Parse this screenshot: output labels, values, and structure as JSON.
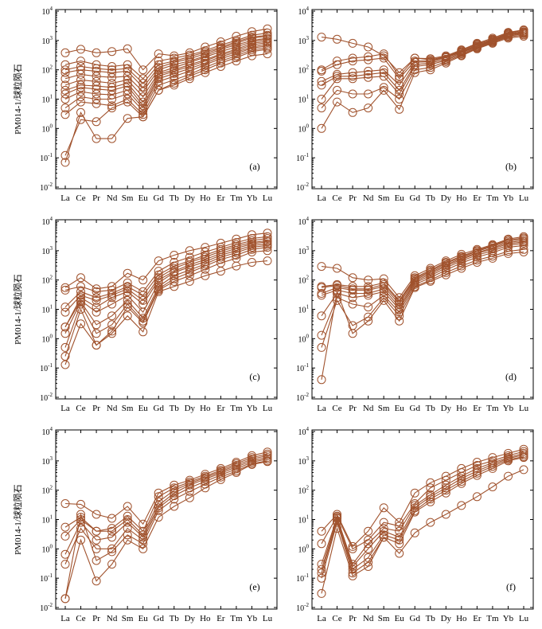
{
  "figure": {
    "series_color": "#a0522d"
  },
  "chart_data": [
    {
      "id": "a",
      "type": "line",
      "label": "(a)",
      "ylabel": "PM014-1/球粒陨石",
      "yscale": "log",
      "ylim": [
        0.01,
        10000
      ],
      "yticks": [
        "10-2",
        "10-1",
        "100",
        "101",
        "102",
        "103",
        "104"
      ],
      "categories": [
        "La",
        "Ce",
        "Pr",
        "Nd",
        "Sm",
        "Eu",
        "Gd",
        "Tb",
        "Dy",
        "Ho",
        "Er",
        "Tm",
        "Yb",
        "Lu"
      ],
      "series": [
        {
          "values": [
            380,
            500,
            380,
            420,
            520,
            100,
            350,
            300,
            380,
            600,
            900,
            1400,
            2000,
            2500
          ]
        },
        {
          "values": [
            150,
            200,
            150,
            130,
            150,
            50,
            200,
            250,
            320,
            450,
            700,
            1000,
            1500,
            1800
          ]
        },
        {
          "values": [
            100,
            130,
            110,
            100,
            110,
            35,
            150,
            200,
            280,
            400,
            600,
            900,
            1300,
            1500
          ]
        },
        {
          "values": [
            80,
            100,
            90,
            80,
            90,
            25,
            120,
            180,
            240,
            350,
            550,
            800,
            1200,
            1400
          ]
        },
        {
          "values": [
            50,
            70,
            60,
            55,
            60,
            18,
            100,
            150,
            200,
            300,
            500,
            700,
            1000,
            1200
          ]
        },
        {
          "values": [
            30,
            45,
            40,
            35,
            45,
            12,
            80,
            120,
            180,
            270,
            420,
            600,
            900,
            1100
          ]
        },
        {
          "values": [
            20,
            30,
            28,
            25,
            35,
            8,
            70,
            100,
            150,
            220,
            350,
            500,
            800,
            950
          ]
        },
        {
          "values": [
            15,
            25,
            22,
            20,
            28,
            6,
            60,
            90,
            130,
            200,
            320,
            450,
            700,
            850
          ]
        },
        {
          "values": [
            10,
            18,
            15,
            14,
            20,
            5,
            50,
            75,
            110,
            170,
            280,
            400,
            600,
            750
          ]
        },
        {
          "values": [
            5,
            12,
            10,
            10,
            15,
            4,
            40,
            60,
            90,
            150,
            240,
            350,
            550,
            650
          ]
        },
        {
          "values": [
            3,
            8,
            7,
            6,
            10,
            3,
            30,
            45,
            70,
            120,
            200,
            300,
            480,
            560
          ]
        },
        {
          "values": [
            0.12,
            2.0,
            1.7,
            5,
            8,
            2.5,
            20,
            35,
            60,
            100,
            170,
            260,
            420,
            500
          ]
        },
        {
          "values": [
            0.07,
            3.5,
            0.45,
            0.45,
            2.2,
            2.5,
            20,
            30,
            50,
            80,
            130,
            200,
            300,
            350
          ]
        }
      ]
    },
    {
      "id": "b",
      "type": "line",
      "label": "(b)",
      "yscale": "log",
      "ylim": [
        0.01,
        10000
      ],
      "yticks": [
        "10-2",
        "10-1",
        "100",
        "101",
        "102",
        "103",
        "104"
      ],
      "categories": [
        "La",
        "Ce",
        "Pr",
        "Nd",
        "Sm",
        "Eu",
        "Gd",
        "Tb",
        "Dy",
        "Ho",
        "Er",
        "Tm",
        "Yb",
        "Lu"
      ],
      "series": [
        {
          "values": [
            1300,
            1100,
            800,
            600,
            300,
            80,
            250,
            220,
            280,
            450,
            750,
            1100,
            1800,
            2200
          ]
        },
        {
          "values": [
            100,
            200,
            250,
            280,
            350,
            60,
            250,
            240,
            300,
            480,
            800,
            1200,
            1900,
            2300
          ]
        },
        {
          "values": [
            90,
            150,
            200,
            220,
            250,
            50,
            200,
            200,
            270,
            420,
            700,
            1050,
            1700,
            2000
          ]
        },
        {
          "values": [
            40,
            70,
            80,
            90,
            100,
            30,
            180,
            190,
            260,
            400,
            650,
            1000,
            1600,
            1900
          ]
        },
        {
          "values": [
            30,
            60,
            60,
            70,
            80,
            20,
            150,
            170,
            230,
            380,
            620,
            950,
            1500,
            1800
          ]
        },
        {
          "values": [
            10,
            50,
            50,
            55,
            60,
            15,
            130,
            150,
            210,
            350,
            580,
            900,
            1400,
            1700
          ]
        },
        {
          "values": [
            5,
            20,
            15,
            15,
            25,
            10,
            100,
            120,
            190,
            320,
            550,
            850,
            1300,
            1550
          ]
        },
        {
          "values": [
            1,
            8,
            3.5,
            5,
            20,
            4.5,
            80,
            100,
            170,
            300,
            520,
            800,
            1200,
            1400
          ]
        }
      ]
    },
    {
      "id": "c",
      "type": "line",
      "label": "(c)",
      "ylabel": "PM014-1/球粒陨石",
      "yscale": "log",
      "ylim": [
        0.01,
        10000
      ],
      "yticks": [
        "10-2",
        "10-1",
        "100",
        "101",
        "102",
        "103",
        "104"
      ],
      "categories": [
        "La",
        "Ce",
        "Pr",
        "Nd",
        "Sm",
        "Eu",
        "Gd",
        "Tb",
        "Dy",
        "Ho",
        "Er",
        "Tm",
        "Yb",
        "Lu"
      ],
      "series": [
        {
          "values": [
            55,
            120,
            50,
            60,
            170,
            100,
            450,
            700,
            1000,
            1300,
            1800,
            2500,
            3500,
            4000
          ]
        },
        {
          "values": [
            45,
            60,
            40,
            45,
            80,
            40,
            200,
            400,
            600,
            900,
            1300,
            1900,
            2600,
            3000
          ]
        },
        {
          "values": [
            12,
            40,
            25,
            35,
            60,
            30,
            150,
            300,
            450,
            700,
            1100,
            1600,
            2200,
            2600
          ]
        },
        {
          "values": [
            8,
            30,
            20,
            30,
            50,
            20,
            120,
            250,
            400,
            600,
            950,
            1400,
            1900,
            2200
          ]
        },
        {
          "values": [
            2.5,
            25,
            12,
            25,
            40,
            15,
            100,
            200,
            330,
            500,
            800,
            1200,
            1700,
            2000
          ]
        },
        {
          "values": [
            2.5,
            20,
            8,
            15,
            30,
            8,
            80,
            180,
            280,
            420,
            700,
            1000,
            1500,
            1700
          ]
        },
        {
          "values": [
            1.5,
            18,
            3,
            6,
            20,
            5,
            60,
            140,
            220,
            350,
            600,
            850,
            1300,
            1500
          ]
        },
        {
          "values": [
            0.5,
            15,
            1.5,
            3,
            15,
            4,
            50,
            110,
            180,
            300,
            500,
            700,
            1100,
            1300
          ]
        },
        {
          "values": [
            0.25,
            10,
            0.6,
            1.8,
            12,
            3.5,
            45,
            90,
            140,
            230,
            380,
            550,
            900,
            1000
          ]
        },
        {
          "values": [
            0.13,
            3.2,
            0.6,
            1.5,
            6,
            1.7,
            40,
            60,
            90,
            140,
            200,
            300,
            400,
            450
          ]
        }
      ]
    },
    {
      "id": "d",
      "type": "line",
      "label": "(d)",
      "yscale": "log",
      "ylim": [
        0.01,
        10000
      ],
      "yticks": [
        "10-2",
        "10-1",
        "100",
        "101",
        "102",
        "103",
        "104"
      ],
      "categories": [
        "La",
        "Ce",
        "Pr",
        "Nd",
        "Sm",
        "Eu",
        "Gd",
        "Tb",
        "Dy",
        "Ho",
        "Er",
        "Tm",
        "Yb",
        "Lu"
      ],
      "series": [
        {
          "values": [
            290,
            250,
            120,
            100,
            110,
            25,
            140,
            250,
            450,
            750,
            1100,
            1600,
            2500,
            3000
          ]
        },
        {
          "values": [
            60,
            70,
            60,
            60,
            80,
            20,
            120,
            220,
            400,
            650,
            1000,
            1500,
            2300,
            2700
          ]
        },
        {
          "values": [
            55,
            65,
            50,
            50,
            70,
            18,
            110,
            200,
            370,
            600,
            950,
            1400,
            2100,
            2500
          ]
        },
        {
          "values": [
            35,
            55,
            45,
            45,
            60,
            15,
            100,
            180,
            330,
            550,
            850,
            1250,
            1900,
            2200
          ]
        },
        {
          "values": [
            30,
            45,
            35,
            35,
            50,
            12,
            90,
            160,
            300,
            500,
            800,
            1150,
            1700,
            2000
          ]
        },
        {
          "values": [
            6,
            35,
            25,
            30,
            40,
            10,
            80,
            140,
            260,
            450,
            700,
            1000,
            1500,
            1800
          ]
        },
        {
          "values": [
            1.3,
            25,
            15,
            12,
            30,
            8,
            70,
            120,
            220,
            380,
            600,
            850,
            1300,
            1500
          ]
        },
        {
          "values": [
            0.5,
            20,
            2.8,
            5.5,
            25,
            6,
            60,
            100,
            180,
            300,
            480,
            650,
            950,
            1100
          ]
        },
        {
          "values": [
            0.04,
            40,
            1.5,
            4,
            20,
            4,
            55,
            90,
            150,
            250,
            400,
            550,
            800,
            900
          ]
        }
      ]
    },
    {
      "id": "e",
      "type": "line",
      "label": "(e)",
      "ylabel": "PM014-1/球粒陨石",
      "yscale": "log",
      "ylim": [
        0.01,
        10000
      ],
      "yticks": [
        "10-2",
        "10-1",
        "100",
        "101",
        "102",
        "103",
        "104"
      ],
      "categories": [
        "La",
        "Ce",
        "Pr",
        "Nd",
        "Sm",
        "Eu",
        "Gd",
        "Tb",
        "Dy",
        "Ho",
        "Er",
        "Tm",
        "Yb",
        "Lu"
      ],
      "series": [
        {
          "values": [
            35,
            33,
            15,
            11,
            28,
            7,
            80,
            150,
            220,
            350,
            550,
            900,
            1500,
            2000
          ]
        },
        {
          "values": [
            5.5,
            12,
            4,
            5,
            13,
            4,
            60,
            120,
            190,
            300,
            480,
            800,
            1300,
            1700
          ]
        },
        {
          "values": [
            2.7,
            10,
            4,
            4,
            10,
            3,
            40,
            100,
            170,
            270,
            430,
            700,
            1150,
            1500
          ]
        },
        {
          "values": [
            0.65,
            8,
            2,
            2.5,
            8,
            2.5,
            30,
            80,
            150,
            240,
            380,
            620,
            1000,
            1300
          ]
        },
        {
          "values": [
            0.3,
            5,
            1,
            1,
            5,
            2,
            25,
            65,
            120,
            200,
            330,
            530,
            900,
            1150
          ]
        },
        {
          "values": [
            0.02,
            15,
            0.4,
            0.8,
            3,
            1.5,
            20,
            50,
            90,
            160,
            280,
            450,
            800,
            1000
          ]
        },
        {
          "values": [
            0.02,
            2,
            0.08,
            0.3,
            2,
            1,
            12,
            28,
            55,
            120,
            230,
            400,
            750,
            950
          ]
        }
      ]
    },
    {
      "id": "f",
      "type": "line",
      "label": "(f)",
      "yscale": "log",
      "ylim": [
        0.01,
        10000
      ],
      "yticks": [
        "10-2",
        "10-1",
        "100",
        "101",
        "102",
        "103",
        "104"
      ],
      "categories": [
        "La",
        "Ce",
        "Pr",
        "Nd",
        "Sm",
        "Eu",
        "Gd",
        "Tb",
        "Dy",
        "Ho",
        "Er",
        "Tm",
        "Yb",
        "Lu"
      ],
      "series": [
        {
          "values": [
            4,
            15,
            1.2,
            4,
            25,
            8,
            80,
            180,
            300,
            550,
            900,
            1300,
            1800,
            2500
          ]
        },
        {
          "values": [
            1.5,
            13,
            1,
            2,
            8,
            6,
            35,
            120,
            220,
            400,
            700,
            1000,
            1500,
            2100
          ]
        },
        {
          "values": [
            0.3,
            12,
            0.3,
            1.5,
            5,
            4,
            30,
            70,
            150,
            300,
            550,
            850,
            1300,
            1800
          ]
        },
        {
          "values": [
            0.2,
            11,
            0.25,
            1,
            4,
            2.5,
            25,
            60,
            120,
            250,
            450,
            750,
            1200,
            1600
          ]
        },
        {
          "values": [
            0.15,
            9,
            0.2,
            0.5,
            3,
            2,
            20,
            50,
            100,
            200,
            380,
            650,
            1100,
            1400
          ]
        },
        {
          "values": [
            0.1,
            8,
            0.15,
            0.35,
            2.5,
            1.5,
            18,
            40,
            80,
            170,
            320,
            550,
            1000,
            1300
          ]
        },
        {
          "values": [
            0.03,
            5,
            0.12,
            0.25,
            2.5,
            0.7,
            3.5,
            8,
            15,
            30,
            60,
            130,
            300,
            500
          ]
        }
      ]
    }
  ]
}
